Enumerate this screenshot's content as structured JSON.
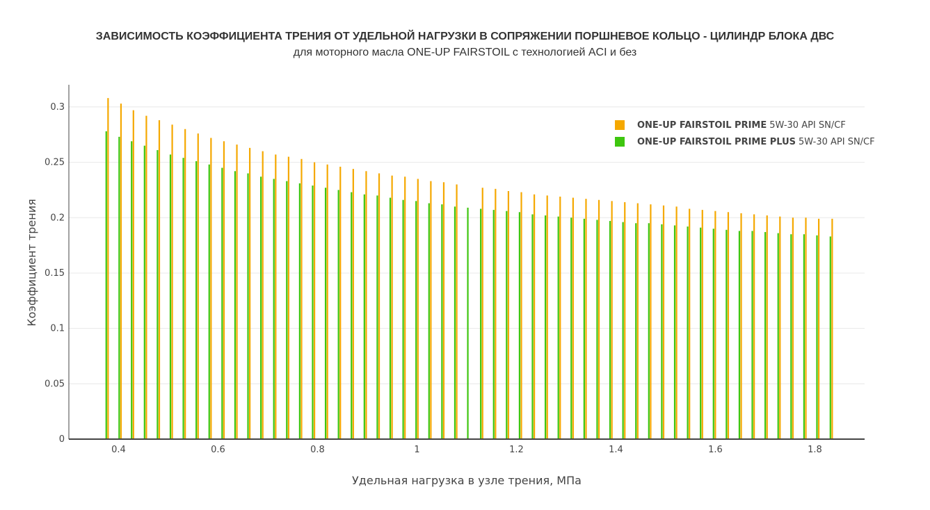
{
  "chart_data": {
    "type": "bar",
    "title": "ЗАВИСИМОСТЬ КОЭФФИЦИЕНТА ТРЕНИЯ ОТ УДЕЛЬНОЙ НАГРУЗКИ В СОПРЯЖЕНИИ ПОРШНЕВОЕ КОЛЬЦО - ЦИЛИНДР БЛОКА ДВС",
    "subtitle": "для моторного масла  ONE-UP FAIRSTOIL с технологией ACI и без",
    "xlabel": "Удельная нагрузка в узле трения, МПа",
    "ylabel": "Коэффициент трения",
    "xlim": [
      0.3,
      1.9
    ],
    "ylim": [
      0,
      0.32
    ],
    "x_ticks": [
      "0.4",
      "0.6",
      "0.8",
      "1",
      "1.2",
      "1.4",
      "1.6",
      "1.8"
    ],
    "y_ticks": [
      "0",
      "0.05",
      "0.1",
      "0.15",
      "0.2",
      "0.25",
      "0.3"
    ],
    "grid": true,
    "legend_position": "top-right",
    "x": [
      0.377,
      0.403,
      0.428,
      0.454,
      0.48,
      0.506,
      0.532,
      0.558,
      0.584,
      0.61,
      0.636,
      0.662,
      0.688,
      0.714,
      0.74,
      0.766,
      0.792,
      0.818,
      0.844,
      0.87,
      0.896,
      0.922,
      0.948,
      0.974,
      1.0,
      1.026,
      1.052,
      1.078,
      1.104,
      1.13,
      1.156,
      1.182,
      1.208,
      1.234,
      1.26,
      1.286,
      1.312,
      1.338,
      1.364,
      1.39,
      1.416,
      1.442,
      1.468,
      1.494,
      1.52,
      1.546,
      1.572,
      1.598,
      1.624,
      1.65,
      1.676,
      1.702,
      1.728,
      1.754,
      1.78,
      1.806,
      1.833
    ],
    "series": [
      {
        "name": "ONE-UP FAIRSTOIL PRIME 5W-30 API SN/CF",
        "name_bold": "ONE-UP FAIRSTOIL PRIME",
        "name_rest": "5W-30 API SN/CF",
        "color": "#f5a800",
        "values": [
          0.308,
          0.303,
          0.297,
          0.292,
          0.288,
          0.284,
          0.28,
          0.276,
          0.272,
          0.269,
          0.266,
          0.263,
          0.26,
          0.257,
          0.255,
          0.253,
          0.25,
          0.248,
          0.246,
          0.244,
          0.242,
          0.24,
          0.238,
          0.237,
          0.235,
          0.233,
          0.232,
          0.23,
          0.0,
          0.227,
          0.226,
          0.224,
          0.223,
          0.221,
          0.22,
          0.219,
          0.218,
          0.217,
          0.216,
          0.215,
          0.214,
          0.213,
          0.212,
          0.211,
          0.21,
          0.208,
          0.207,
          0.206,
          0.205,
          0.204,
          0.203,
          0.202,
          0.201,
          0.2,
          0.2,
          0.199,
          0.199
        ]
      },
      {
        "name": "ONE-UP FAIRSTOIL PRIME PLUS 5W-30 API SN/CF",
        "name_bold": "ONE-UP FAIRSTOIL PRIME PLUS",
        "name_rest": "5W-30 API SN/CF",
        "color": "#3ec60f",
        "values": [
          0.278,
          0.273,
          0.269,
          0.265,
          0.261,
          0.257,
          0.254,
          0.251,
          0.248,
          0.245,
          0.242,
          0.24,
          0.237,
          0.235,
          0.233,
          0.231,
          0.229,
          0.227,
          0.225,
          0.223,
          0.221,
          0.22,
          0.218,
          0.216,
          0.215,
          0.213,
          0.212,
          0.21,
          0.209,
          0.208,
          0.207,
          0.206,
          0.205,
          0.203,
          0.202,
          0.201,
          0.2,
          0.199,
          0.198,
          0.197,
          0.196,
          0.195,
          0.195,
          0.194,
          0.193,
          0.192,
          0.191,
          0.19,
          0.189,
          0.188,
          0.188,
          0.187,
          0.186,
          0.185,
          0.185,
          0.184,
          0.183
        ]
      }
    ]
  }
}
